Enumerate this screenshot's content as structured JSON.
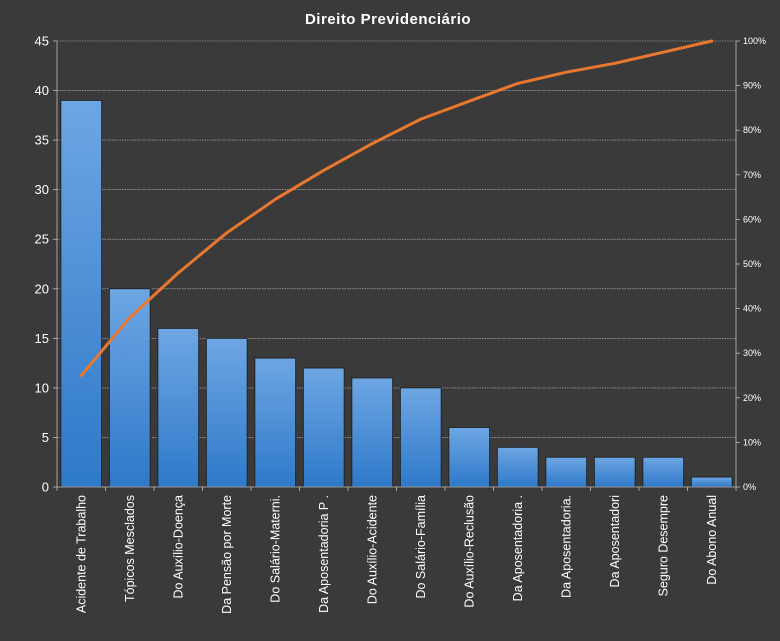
{
  "chart_data": {
    "type": "bar",
    "title": "Direito  Previdenciário",
    "categories": [
      "Acidente de Trabalho",
      "Tópicos Mesclados",
      "Do Auxílio-Doença",
      "Da Pensão por Morte",
      "Do Salário-Materni.",
      "Da Aposentadoria P .",
      "Do Auxílio-Acidente",
      "Do Salário-Família",
      "Do Auxílio-Reclusão",
      "Da Aposentadoria .",
      "Da Aposentadoria.",
      "Da Aposentadori",
      "Seguro Desempre",
      "Do Abono Anual"
    ],
    "series": [
      {
        "type": "bar",
        "axis": "left",
        "values": [
          39,
          20,
          16,
          15,
          13,
          12,
          11,
          10,
          6,
          4,
          3,
          3,
          3,
          1
        ]
      },
      {
        "type": "line",
        "axis": "right",
        "values": [
          25,
          38,
          48,
          57,
          64.5,
          71,
          77,
          82.5,
          86.5,
          90.5,
          93,
          95,
          97.5,
          100
        ]
      }
    ],
    "ylim": [
      0,
      45
    ],
    "yticks": [
      "0",
      "5",
      "10",
      "15",
      "20",
      "25",
      "30",
      "35",
      "40",
      "45"
    ],
    "y2lim": [
      0,
      100
    ],
    "y2ticks": [
      "0%",
      "10%",
      "20%",
      "30%",
      "40%",
      "50%",
      "60%",
      "70%",
      "80%",
      "90%",
      "100%"
    ],
    "grid": true,
    "legend": "none",
    "colors": {
      "background": "#3a3a3a",
      "bar_top": "#6ea6e3",
      "bar_bottom": "#2e79c9",
      "bar_edge": "#1c1c1c",
      "line": "#e87830",
      "grid": "#bdbdbd",
      "text": "#ffffff"
    }
  }
}
